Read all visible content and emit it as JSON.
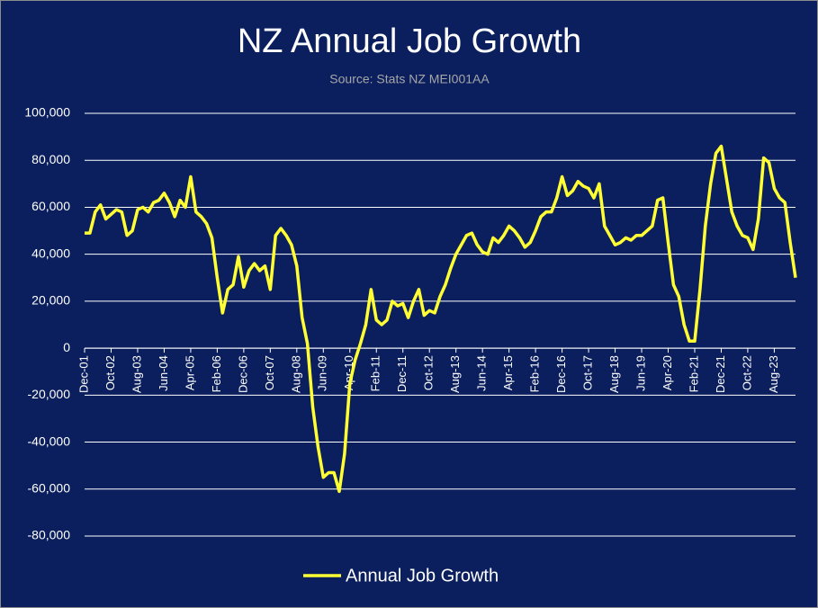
{
  "chart_data": {
    "type": "line",
    "title": "NZ Annual Job Growth",
    "subtitle": "Source: Stats NZ MEI001AA",
    "categories": [
      "Dec-01",
      null,
      null,
      null,
      null,
      "Oct-02",
      null,
      null,
      null,
      null,
      "Aug-03",
      null,
      null,
      null,
      null,
      "Jun-04",
      null,
      null,
      null,
      null,
      "Apr-05",
      null,
      null,
      null,
      null,
      "Feb-06",
      null,
      null,
      null,
      null,
      "Dec-06",
      null,
      null,
      null,
      null,
      "Oct-07",
      null,
      null,
      null,
      null,
      "Aug-08",
      null,
      null,
      null,
      null,
      "Jun-09",
      null,
      null,
      null,
      null,
      "Apr-10",
      null,
      null,
      null,
      null,
      "Feb-11",
      null,
      null,
      null,
      null,
      "Dec-11",
      null,
      null,
      null,
      null,
      "Oct-12",
      null,
      null,
      null,
      null,
      "Aug-13",
      null,
      null,
      null,
      null,
      "Jun-14",
      null,
      null,
      null,
      null,
      "Apr-15",
      null,
      null,
      null,
      null,
      "Feb-16",
      null,
      null,
      null,
      null,
      "Dec-16",
      null,
      null,
      null,
      null,
      "Oct-17",
      null,
      null,
      null,
      null,
      "Aug-18",
      null,
      null,
      null,
      null,
      "Jun-19",
      null,
      null,
      null,
      null,
      "Apr-20",
      null,
      null,
      null,
      null,
      "Feb-21",
      null,
      null,
      null,
      null,
      "Dec-21",
      null,
      null,
      null,
      null,
      "Oct-22",
      null,
      null,
      null,
      null,
      "Aug-23",
      null,
      null,
      null,
      null
    ],
    "series": [
      {
        "name": "Annual Job Growth",
        "color": "#ffff33",
        "values": [
          49000,
          49000,
          58000,
          61000,
          55000,
          57000,
          59000,
          58000,
          48000,
          50000,
          59000,
          60000,
          58000,
          62000,
          63000,
          66000,
          62000,
          56000,
          63000,
          60000,
          73000,
          58000,
          56000,
          53000,
          47000,
          30000,
          15000,
          25000,
          27000,
          39000,
          26000,
          33000,
          36000,
          33000,
          35000,
          25000,
          48000,
          51000,
          48000,
          44000,
          35000,
          13000,
          2000,
          -25000,
          -42000,
          -55000,
          -53000,
          -53000,
          -61000,
          -45000,
          -15000,
          -5000,
          2000,
          10000,
          25000,
          12000,
          10000,
          12000,
          20000,
          18000,
          19000,
          13000,
          20000,
          25000,
          14000,
          16000,
          15000,
          22000,
          27000,
          34000,
          40000,
          44000,
          48000,
          49000,
          44000,
          41000,
          40000,
          47000,
          45000,
          48000,
          52000,
          50000,
          47000,
          43000,
          45000,
          50000,
          56000,
          58000,
          58000,
          64000,
          73000,
          65000,
          67000,
          71000,
          69000,
          68000,
          64000,
          70000,
          52000,
          48000,
          44000,
          45000,
          47000,
          46000,
          48000,
          48000,
          50000,
          52000,
          63000,
          64000,
          45000,
          27000,
          22000,
          10000,
          3000,
          3000,
          25000,
          52000,
          70000,
          83000,
          86000,
          72000,
          58000,
          52000,
          48000,
          47000,
          42000,
          55000,
          81000,
          79000,
          68000,
          64000,
          62000,
          45000,
          30000
        ]
      }
    ],
    "ylim": [
      -80000,
      100000
    ],
    "yticks": [
      {
        "value": -80000,
        "label": "-80,000"
      },
      {
        "value": -60000,
        "label": "-60,000"
      },
      {
        "value": -40000,
        "label": "-40,000"
      },
      {
        "value": -20000,
        "label": "-20,000"
      },
      0,
      {
        "value": 20000,
        "label": "20,000"
      },
      {
        "value": 40000,
        "label": "40,000"
      },
      {
        "value": 60000,
        "label": "60,000"
      },
      {
        "value": 80000,
        "label": "80,000"
      },
      {
        "value": 100000,
        "label": "100,000"
      }
    ],
    "grid": true,
    "legend": "bottom"
  }
}
